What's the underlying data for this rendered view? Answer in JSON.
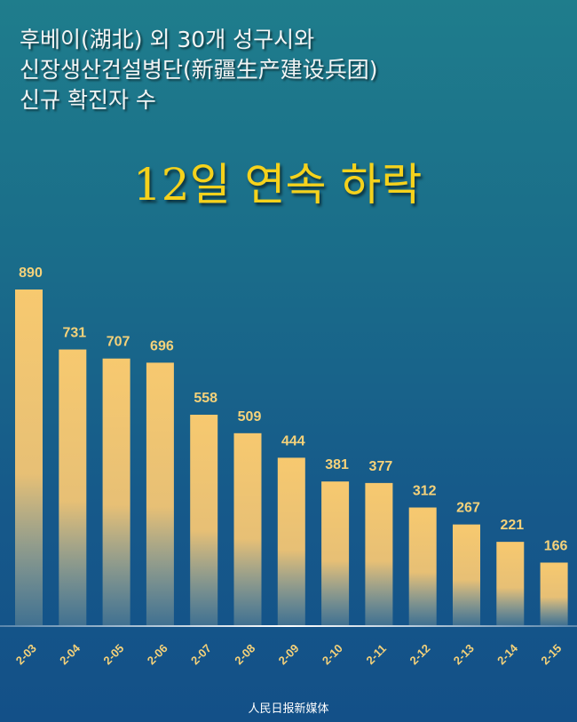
{
  "title_lines": [
    "후베이(湖北) 외 30개 성구시와",
    "신장생산건설병단(新疆生产建设兵团)",
    "신규 확진자 수"
  ],
  "headline": "12일 연속 하락",
  "footer": "人民日报新媒体",
  "colors": {
    "bar": "#f7c96f",
    "label": "#f5d27a",
    "headline": "#f5d21c"
  },
  "chart_data": {
    "type": "bar",
    "categories": [
      "2-03",
      "2-04",
      "2-05",
      "2-06",
      "2-07",
      "2-08",
      "2-09",
      "2-10",
      "2-11",
      "2-12",
      "2-13",
      "2-14",
      "2-15"
    ],
    "values": [
      890,
      731,
      707,
      696,
      558,
      509,
      444,
      381,
      377,
      312,
      267,
      221,
      166
    ],
    "title": "12일 연속 하락",
    "xlabel": "",
    "ylabel": "",
    "ylim": [
      0,
      900
    ],
    "grid": false,
    "data_labels": true
  }
}
